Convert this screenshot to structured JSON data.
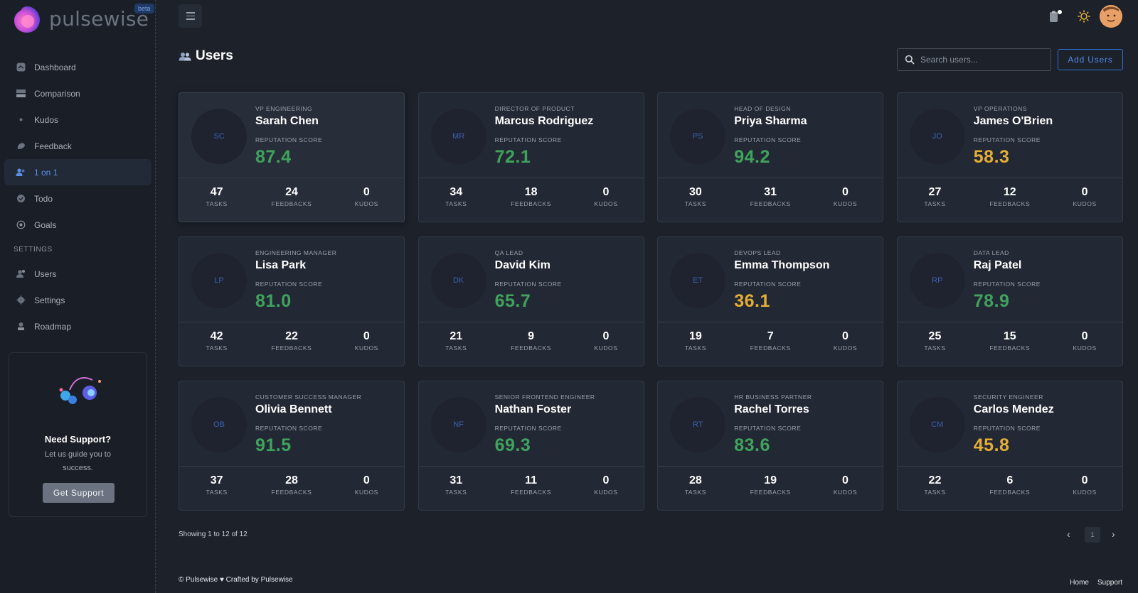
{
  "app": {
    "name": "pulsewise",
    "badge": "beta"
  },
  "sidebar": {
    "items": [
      {
        "label": "Dashboard",
        "icon": "dashboard-icon"
      },
      {
        "label": "Comparison",
        "icon": "comparison-icon"
      },
      {
        "label": "Kudos",
        "icon": "kudos-icon"
      },
      {
        "label": "Feedback",
        "icon": "feedback-icon"
      },
      {
        "label": "1 on 1",
        "icon": "users-icon",
        "active": true
      },
      {
        "label": "Todo",
        "icon": "todo-icon"
      },
      {
        "label": "Goals",
        "icon": "goals-icon"
      }
    ],
    "settings_section": "SETTINGS",
    "settings_items": [
      {
        "label": "Users",
        "icon": "user-gear-icon"
      },
      {
        "label": "Settings",
        "icon": "gear-icon"
      },
      {
        "label": "Roadmap",
        "icon": "roadmap-icon"
      }
    ],
    "support": {
      "title": "Need Support?",
      "text": "Let us guide you to success.",
      "button": "Get Support"
    }
  },
  "header": {
    "title": "Users",
    "search_placeholder": "Search users...",
    "add_button": "Add Users"
  },
  "labels": {
    "reputation": "REPUTATION SCORE",
    "tasks": "TASKS",
    "feedbacks": "FEEDBACKS",
    "kudos": "KUDOS"
  },
  "users": [
    {
      "initials": "SC",
      "role": "VP ENGINEERING",
      "name": "Sarah Chen",
      "score": "87.4",
      "tasks": "47",
      "feedbacks": "24",
      "kudos": "0"
    },
    {
      "initials": "MR",
      "role": "DIRECTOR OF PRODUCT",
      "name": "Marcus Rodriguez",
      "score": "72.1",
      "tasks": "34",
      "feedbacks": "18",
      "kudos": "0"
    },
    {
      "initials": "PS",
      "role": "HEAD OF DESIGN",
      "name": "Priya Sharma",
      "score": "94.2",
      "tasks": "30",
      "feedbacks": "31",
      "kudos": "0"
    },
    {
      "initials": "JO",
      "role": "VP OPERATIONS",
      "name": "James O'Brien",
      "score": "58.3",
      "tasks": "27",
      "feedbacks": "12",
      "kudos": "0"
    },
    {
      "initials": "LP",
      "role": "ENGINEERING MANAGER",
      "name": "Lisa Park",
      "score": "81.0",
      "tasks": "42",
      "feedbacks": "22",
      "kudos": "0"
    },
    {
      "initials": "DK",
      "role": "QA LEAD",
      "name": "David Kim",
      "score": "65.7",
      "tasks": "21",
      "feedbacks": "9",
      "kudos": "0"
    },
    {
      "initials": "ET",
      "role": "DEVOPS LEAD",
      "name": "Emma Thompson",
      "score": "36.1",
      "tasks": "19",
      "feedbacks": "7",
      "kudos": "0"
    },
    {
      "initials": "RP",
      "role": "DATA LEAD",
      "name": "Raj Patel",
      "score": "78.9",
      "tasks": "25",
      "feedbacks": "15",
      "kudos": "0"
    },
    {
      "initials": "OB",
      "role": "CUSTOMER SUCCESS MANAGER",
      "name": "Olivia Bennett",
      "score": "91.5",
      "tasks": "37",
      "feedbacks": "28",
      "kudos": "0"
    },
    {
      "initials": "NF",
      "role": "SENIOR FRONTEND ENGINEER",
      "name": "Nathan Foster",
      "score": "69.3",
      "tasks": "31",
      "feedbacks": "11",
      "kudos": "0"
    },
    {
      "initials": "RT",
      "role": "HR BUSINESS PARTNER",
      "name": "Rachel Torres",
      "score": "83.6",
      "tasks": "28",
      "feedbacks": "19",
      "kudos": "0"
    },
    {
      "initials": "CM",
      "role": "SECURITY ENGINEER",
      "name": "Carlos Mendez",
      "score": "45.8",
      "tasks": "22",
      "feedbacks": "6",
      "kudos": "0"
    }
  ],
  "colors": {
    "score_high": "#3fa35c",
    "score_mid": "#e3ad36",
    "accent": "#4f8ae6"
  },
  "pagination": {
    "summary": "Showing 1 to 12 of 12",
    "current_page": "1"
  },
  "footer": {
    "left": "© Pulsewise ♥ Crafted by Pulsewise",
    "links": [
      "Home",
      "Support"
    ]
  }
}
